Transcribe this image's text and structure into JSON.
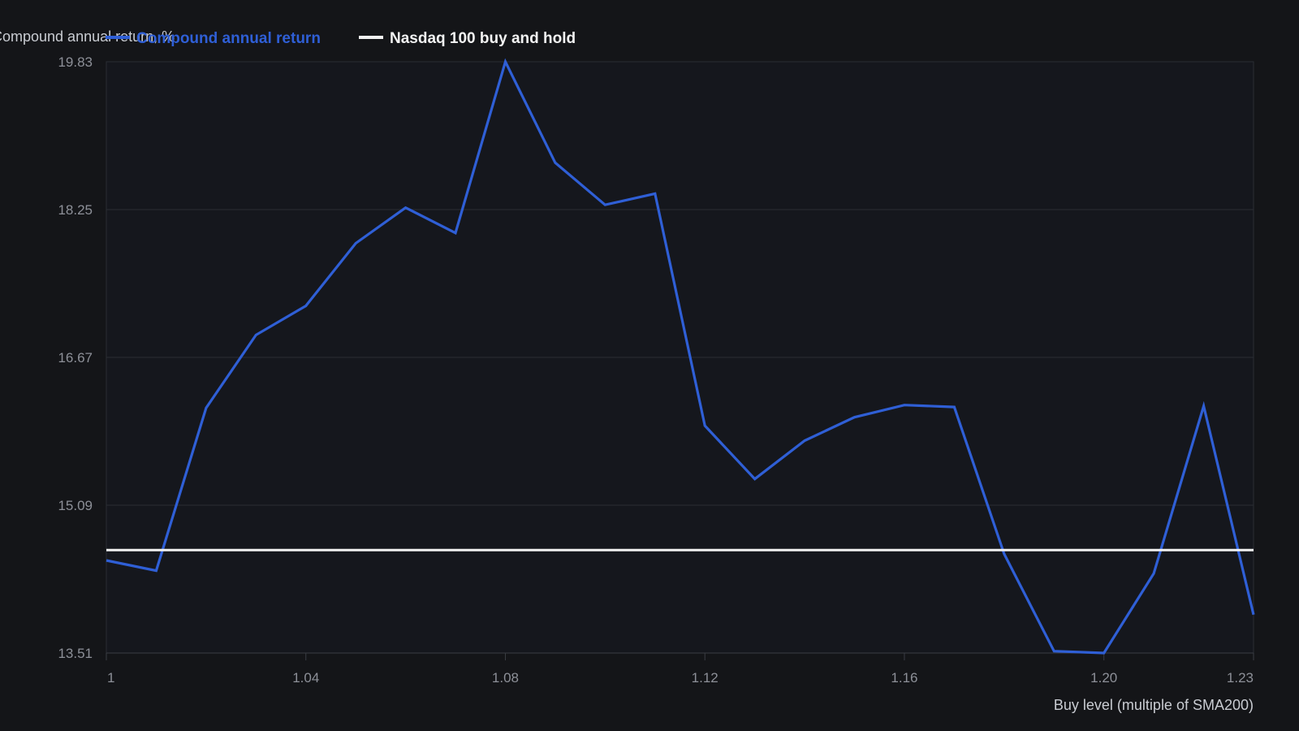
{
  "chart_data": {
    "type": "line",
    "title": "",
    "ylabel": "Compound annual return, %",
    "xlabel": "Buy level (multiple of SMA200)",
    "x_tick_labels": [
      "1",
      "1.04",
      "1.08",
      "1.12",
      "1.16",
      "1.20",
      "1.23"
    ],
    "y_tick_labels": [
      "19.83",
      "18.25",
      "16.67",
      "15.09",
      "13.51"
    ],
    "y_ticks": [
      19.83,
      18.25,
      16.67,
      15.09,
      13.51
    ],
    "ylim": [
      13.51,
      19.83
    ],
    "xlim": [
      1.0,
      1.23
    ],
    "grid": "horizontal",
    "legend_position": "top-left",
    "series": [
      {
        "name": "Compound annual return",
        "color": "#2f5fd6",
        "x": [
          1.0,
          1.01,
          1.02,
          1.03,
          1.04,
          1.05,
          1.06,
          1.07,
          1.08,
          1.09,
          1.1,
          1.11,
          1.12,
          1.13,
          1.14,
          1.15,
          1.16,
          1.17,
          1.18,
          1.19,
          1.2,
          1.21,
          1.22,
          1.23
        ],
        "values": [
          14.5,
          14.39,
          16.13,
          16.91,
          17.22,
          17.89,
          18.27,
          18.0,
          19.83,
          18.75,
          18.3,
          18.42,
          15.94,
          15.37,
          15.78,
          16.03,
          16.16,
          16.14,
          14.57,
          13.53,
          13.51,
          14.36,
          16.15,
          13.92
        ]
      },
      {
        "name": "Nasdaq 100 buy and hold",
        "color": "#f2f2f2",
        "x": [
          1.0,
          1.23
        ],
        "values": [
          14.61,
          14.61
        ]
      }
    ]
  }
}
